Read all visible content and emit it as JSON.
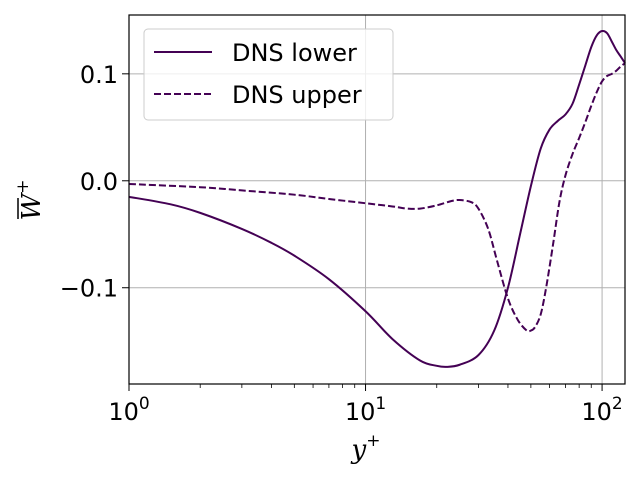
{
  "chart_data": {
    "type": "line",
    "xscale": "log",
    "xlim": [
      1,
      125
    ],
    "ylim": [
      -0.19,
      0.155
    ],
    "grid": true,
    "xlabel": "y",
    "xlabel_sup": "+",
    "ylabel": "W",
    "ylabel_sup": "+",
    "xticks": [
      {
        "value": 1,
        "base": "10",
        "exp": "0"
      },
      {
        "value": 10,
        "base": "10",
        "exp": "1"
      },
      {
        "value": 100,
        "base": "10",
        "exp": "2"
      }
    ],
    "yticks": [
      {
        "value": 0.1,
        "label": "0.1"
      },
      {
        "value": 0.0,
        "label": "0.0"
      },
      {
        "value": -0.1,
        "label": "−0.1"
      }
    ],
    "legend_position": "top-left",
    "series": [
      {
        "name": "DNS lower",
        "color": "#440154",
        "style": "solid",
        "x": [
          1,
          1.5,
          2,
          3,
          4,
          5,
          7,
          10,
          13,
          17,
          20,
          22,
          25,
          30,
          35,
          40,
          45,
          50,
          55,
          60,
          65,
          70,
          75,
          80,
          85,
          90,
          95,
          100,
          105,
          110,
          115,
          120,
          125
        ],
        "y": [
          -0.015,
          -0.022,
          -0.03,
          -0.045,
          -0.058,
          -0.07,
          -0.092,
          -0.122,
          -0.148,
          -0.168,
          -0.173,
          -0.174,
          -0.172,
          -0.163,
          -0.14,
          -0.1,
          -0.05,
          -0.005,
          0.03,
          0.048,
          0.056,
          0.062,
          0.072,
          0.09,
          0.108,
          0.125,
          0.136,
          0.14,
          0.138,
          0.13,
          0.122,
          0.116,
          0.11
        ]
      },
      {
        "name": "DNS upper",
        "color": "#440154",
        "style": "dashed",
        "x": [
          1,
          2,
          3,
          5,
          7,
          10,
          13,
          15,
          17,
          20,
          23,
          25,
          28,
          30,
          33,
          36,
          40,
          44,
          48,
          50,
          52,
          55,
          58,
          62,
          66,
          70,
          75,
          80,
          85,
          90,
          95,
          100,
          105,
          110,
          115,
          120,
          125
        ],
        "y": [
          -0.003,
          -0.006,
          -0.009,
          -0.013,
          -0.017,
          -0.021,
          -0.024,
          -0.026,
          -0.026,
          -0.023,
          -0.019,
          -0.018,
          -0.02,
          -0.026,
          -0.045,
          -0.075,
          -0.11,
          -0.13,
          -0.14,
          -0.14,
          -0.137,
          -0.125,
          -0.1,
          -0.06,
          -0.02,
          0.005,
          0.025,
          0.04,
          0.055,
          0.07,
          0.083,
          0.093,
          0.098,
          0.1,
          0.103,
          0.107,
          0.11
        ]
      }
    ]
  }
}
